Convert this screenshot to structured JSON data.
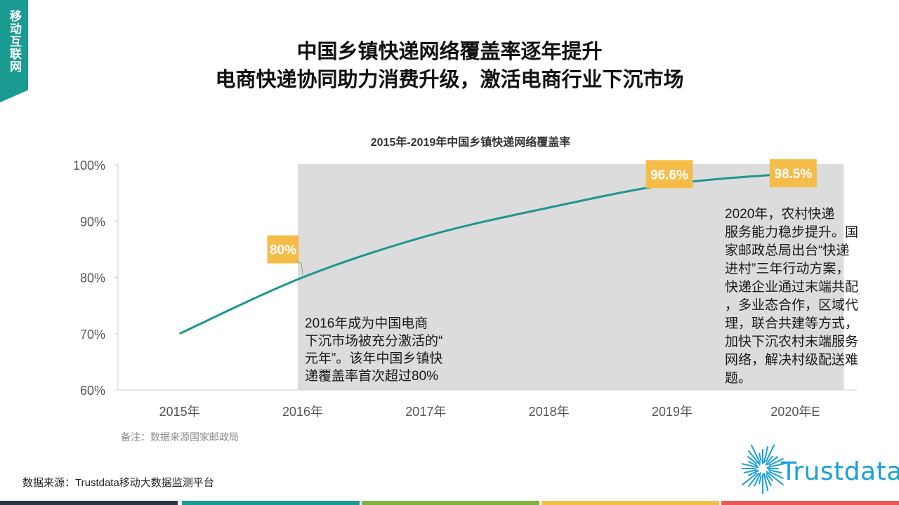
{
  "side_tag": "移动互联网",
  "title_line1": "中国乡镇快递网络覆盖率逐年提升",
  "title_line2": "电商快递协同助力消费升级，激活电商行业下沉市场",
  "note": "备注：数据来源国家邮政局",
  "source": "数据来源：Trustdata移动大数据监测平台",
  "logo_text": "Trustdata",
  "colors": {
    "accent": "#1a9b92",
    "line": "#1e9590",
    "label_bg": "#f5bc4a",
    "shade": "#dcdcdc",
    "bar_colors": [
      "#2a3540",
      "#1a9b92",
      "#7cb342",
      "#f5bc4a",
      "#e85a4f"
    ]
  },
  "chart_data": {
    "type": "line",
    "title": "2015年-2019年中国乡镇快递网络覆盖率",
    "categories": [
      "2015年",
      "2016年",
      "2017年",
      "2018年",
      "2019年",
      "2020年E"
    ],
    "series": [
      {
        "values": [
          70,
          80,
          87.3,
          92.4,
          96.6,
          98.5
        ]
      }
    ],
    "ylim": [
      60,
      100
    ],
    "y_ticks": [
      "60%",
      "70%",
      "80%",
      "90%",
      "100%"
    ],
    "data_labels": [
      {
        "index": 1,
        "text": "80%"
      },
      {
        "index": 4,
        "text": "96.6%"
      },
      {
        "index": 5,
        "text": "98.5%"
      }
    ],
    "shaded_range": {
      "from_category": "2016年",
      "to_category": "2020年E"
    },
    "annotations": [
      "2016年成为中国电商下沉市场被充分激活的“元年”。该年中国乡镇快递覆盖率首次超过80%",
      "2020年，农村快递服务能力稳步提升。国家邮政总局出台“快递进村”三年行动方案，快递企业通过末端共配，多业态合作，区域代理，联合共建等方式，加快下沉农村末端服务网络，解决村级配送难题。"
    ],
    "grid": false
  }
}
